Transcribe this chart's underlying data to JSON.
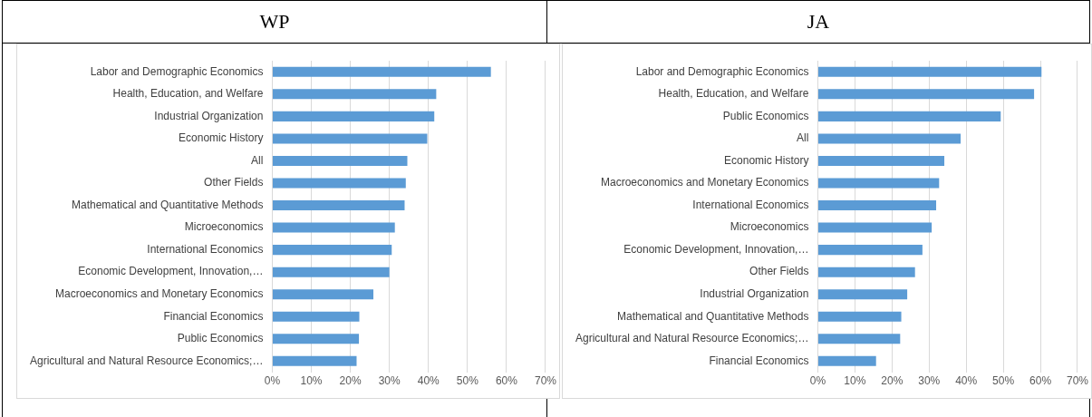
{
  "chart_data": [
    {
      "type": "bar",
      "orientation": "horizontal",
      "title": "WP",
      "categories": [
        "Labor and Demographic Economics",
        "Health, Education, and Welfare",
        "Industrial Organization",
        "Economic History",
        "All",
        "Other Fields",
        "Mathematical and Quantitative Methods",
        "Microeconomics",
        "International Economics",
        "Economic Development, Innovation,…",
        "Macroeconomics and Monetary Economics",
        "Financial Economics",
        "Public Economics",
        "Agricultural and Natural Resource Economics;…"
      ],
      "values": [
        56,
        42,
        41.5,
        39.7,
        34.6,
        34.2,
        33.9,
        31.4,
        30.6,
        30,
        25.9,
        22.3,
        22.2,
        21.6
      ],
      "color": "#5b9bd5",
      "xlim": [
        0,
        70
      ],
      "xticks": [
        {
          "value": 0,
          "label": "0%"
        },
        {
          "value": 10,
          "label": "10%"
        },
        {
          "value": 20,
          "label": "20%"
        },
        {
          "value": 30,
          "label": "30%"
        },
        {
          "value": 40,
          "label": "40%"
        },
        {
          "value": 50,
          "label": "50%"
        },
        {
          "value": 60,
          "label": "60%"
        },
        {
          "value": 70,
          "label": "70%"
        }
      ],
      "grid": "x"
    },
    {
      "type": "bar",
      "orientation": "horizontal",
      "title": "JA",
      "categories": [
        "Labor and Demographic Economics",
        "Health, Education, and Welfare",
        "Public Economics",
        "All",
        "Economic History",
        "Macroeconomics and Monetary Economics",
        "International Economics",
        "Microeconomics",
        "Economic Development, Innovation,…",
        "Other Fields",
        "Industrial Organization",
        "Mathematical and Quantitative Methods",
        "Agricultural and Natural Resource Economics;…",
        "Financial Economics"
      ],
      "values": [
        60.3,
        58.3,
        49.3,
        38.5,
        34.1,
        32.7,
        31.9,
        30.7,
        28.2,
        26.2,
        24.1,
        22.5,
        22.2,
        15.7
      ],
      "color": "#5b9bd5",
      "xlim": [
        0,
        70
      ],
      "xticks": [
        {
          "value": 0,
          "label": "0%"
        },
        {
          "value": 10,
          "label": "10%"
        },
        {
          "value": 20,
          "label": "20%"
        },
        {
          "value": 30,
          "label": "30%"
        },
        {
          "value": 40,
          "label": "40%"
        },
        {
          "value": 50,
          "label": "50%"
        },
        {
          "value": 60,
          "label": "60%"
        },
        {
          "value": 70,
          "label": "70%"
        }
      ],
      "grid": "x"
    }
  ]
}
